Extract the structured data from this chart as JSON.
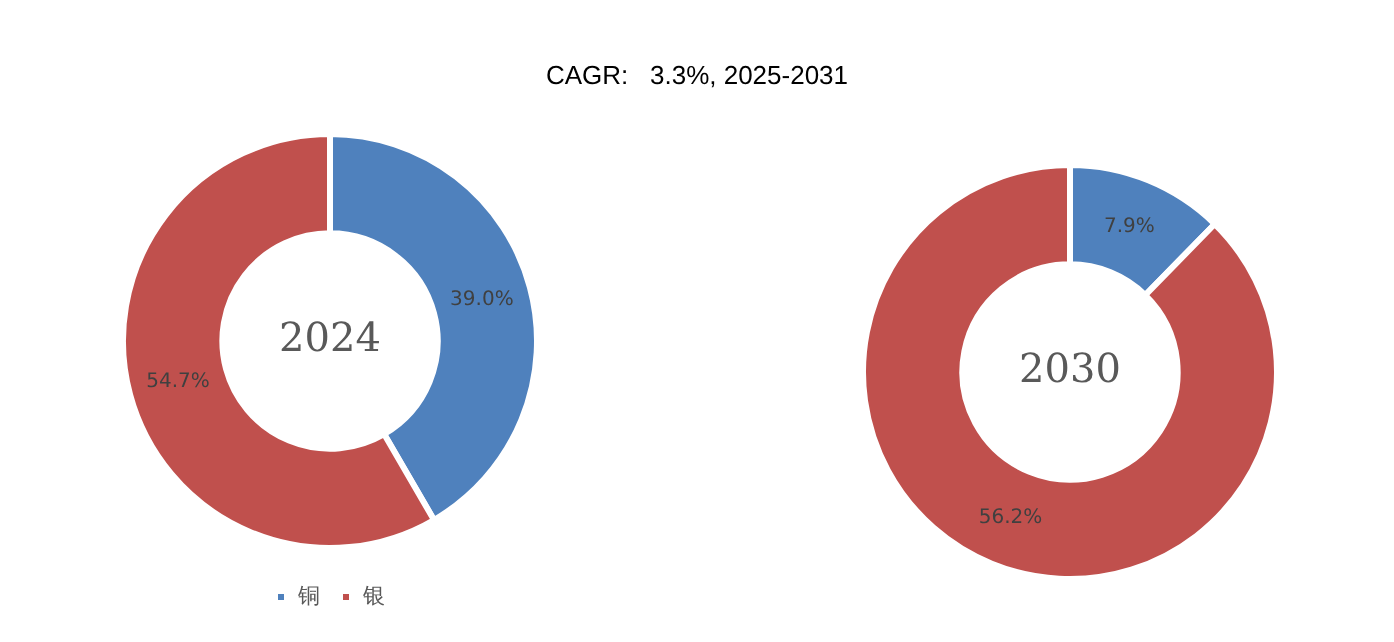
{
  "chart_data": [
    {
      "type": "donut",
      "title": "CAGR:   3.3%, 2025-2031",
      "categories": [
        "铜",
        "银"
      ],
      "values": [
        39.0,
        54.7
      ],
      "colors": [
        "#4f81bd",
        "#c0504d"
      ],
      "value_labels": [
        "39.0%",
        "54.7%"
      ],
      "annotations": [
        "2024"
      ],
      "legend": "bottom"
    },
    {
      "type": "donut",
      "categories": [
        null,
        null
      ],
      "values": [
        7.9,
        56.2
      ],
      "colors": [
        "#4f81bd",
        "#c0504d"
      ],
      "value_labels": [
        "7.9%",
        "56.2%"
      ],
      "annotations": [
        "2030"
      ],
      "legend": false
    }
  ]
}
